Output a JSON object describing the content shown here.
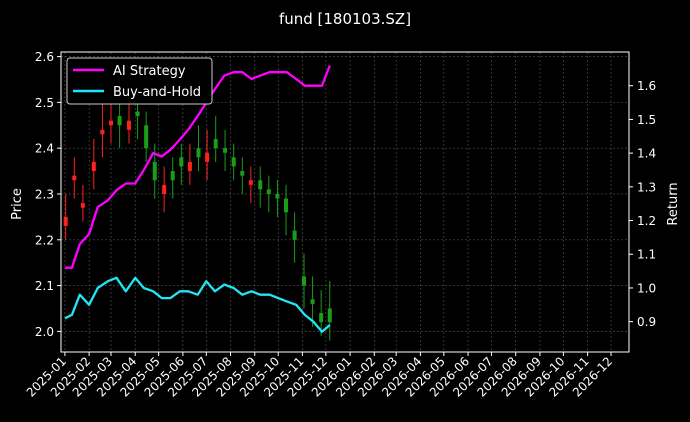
{
  "chart_data": {
    "type": "line",
    "title": "fund [180103.SZ]",
    "ylabel_left": "Price",
    "ylabel_right": "Return",
    "xlabel": "",
    "grid": true,
    "legend_position": "top-left",
    "background": "#000000",
    "x_ticks": [
      "2025-01",
      "2025-02",
      "2025-03",
      "2025-04",
      "2025-05",
      "2025-06",
      "2025-07",
      "2025-08",
      "2025-09",
      "2025-10",
      "2025-11",
      "2025-12",
      "2026-01",
      "2026-02",
      "2026-03",
      "2026-04",
      "2026-05",
      "2026-06",
      "2026-07",
      "2026-08",
      "2026-09",
      "2026-10",
      "2026-11",
      "2026-12"
    ],
    "y_left": {
      "range": [
        1.955,
        2.61
      ],
      "ticks": [
        "2.0",
        "2.1",
        "2.2",
        "2.3",
        "2.4",
        "2.5",
        "2.6"
      ]
    },
    "y_right": {
      "range": [
        0.81,
        1.7
      ],
      "ticks": [
        "0.9",
        "1.0",
        "1.1",
        "1.2",
        "1.3",
        "1.4",
        "1.5",
        "1.6"
      ]
    },
    "candles": {
      "up_color": "#ff2020",
      "down_color": "#1a9e1a",
      "x": [
        "2025-01-02",
        "2025-01-13",
        "2025-01-24",
        "2025-02-07",
        "2025-02-18",
        "2025-03-01",
        "2025-03-12",
        "2025-03-24",
        "2025-04-04",
        "2025-04-15",
        "2025-04-26",
        "2025-05-08",
        "2025-05-19",
        "2025-05-30",
        "2025-06-10",
        "2025-06-21",
        "2025-07-02",
        "2025-07-13",
        "2025-07-25",
        "2025-08-05",
        "2025-08-16",
        "2025-08-27",
        "2025-09-08",
        "2025-09-19",
        "2025-09-30",
        "2025-10-11",
        "2025-10-22",
        "2025-11-03",
        "2025-11-14",
        "2025-11-25",
        "2025-12-06"
      ],
      "open": [
        2.23,
        2.33,
        2.27,
        2.35,
        2.43,
        2.45,
        2.47,
        2.44,
        2.48,
        2.45,
        2.37,
        2.3,
        2.35,
        2.38,
        2.35,
        2.4,
        2.37,
        2.42,
        2.4,
        2.38,
        2.35,
        2.32,
        2.33,
        2.31,
        2.3,
        2.29,
        2.22,
        2.12,
        2.07,
        2.04,
        2.05
      ],
      "close": [
        2.25,
        2.34,
        2.28,
        2.37,
        2.44,
        2.46,
        2.45,
        2.46,
        2.47,
        2.4,
        2.33,
        2.32,
        2.33,
        2.36,
        2.37,
        2.38,
        2.39,
        2.4,
        2.39,
        2.36,
        2.34,
        2.33,
        2.31,
        2.3,
        2.29,
        2.26,
        2.2,
        2.1,
        2.06,
        2.02,
        2.02
      ],
      "high": [
        2.3,
        2.38,
        2.32,
        2.42,
        2.5,
        2.55,
        2.54,
        2.5,
        2.52,
        2.48,
        2.41,
        2.36,
        2.38,
        2.41,
        2.41,
        2.45,
        2.44,
        2.47,
        2.44,
        2.41,
        2.38,
        2.36,
        2.36,
        2.34,
        2.33,
        2.32,
        2.26,
        2.17,
        2.12,
        2.09,
        2.11
      ],
      "low": [
        2.2,
        2.29,
        2.24,
        2.31,
        2.38,
        2.41,
        2.4,
        2.41,
        2.42,
        2.37,
        2.29,
        2.26,
        2.29,
        2.32,
        2.32,
        2.35,
        2.33,
        2.37,
        2.35,
        2.33,
        2.3,
        2.28,
        2.27,
        2.26,
        2.25,
        2.21,
        2.15,
        2.05,
        2.01,
        1.99,
        1.98
      ]
    },
    "series": [
      {
        "name": "AI Strategy",
        "color": "#ff00ff",
        "axis": "right",
        "x": [
          "2025-01-01",
          "2025-01-10",
          "2025-01-20",
          "2025-02-01",
          "2025-02-12",
          "2025-02-25",
          "2025-03-08",
          "2025-03-20",
          "2025-04-01",
          "2025-04-12",
          "2025-04-24",
          "2025-05-05",
          "2025-05-16",
          "2025-05-28",
          "2025-06-08",
          "2025-06-20",
          "2025-07-01",
          "2025-07-12",
          "2025-07-24",
          "2025-08-05",
          "2025-08-16",
          "2025-08-28",
          "2025-09-08",
          "2025-09-20",
          "2025-10-01",
          "2025-10-12",
          "2025-10-24",
          "2025-11-04",
          "2025-11-15",
          "2025-11-26",
          "2025-12-06"
        ],
        "values": [
          1.06,
          1.06,
          1.13,
          1.16,
          1.24,
          1.26,
          1.29,
          1.31,
          1.31,
          1.35,
          1.4,
          1.39,
          1.41,
          1.44,
          1.47,
          1.51,
          1.55,
          1.59,
          1.63,
          1.64,
          1.64,
          1.62,
          1.63,
          1.64,
          1.64,
          1.64,
          1.62,
          1.6,
          1.6,
          1.6,
          1.66
        ]
      },
      {
        "name": "Buy-and-Hold",
        "color": "#22e5f5",
        "axis": "right",
        "x": [
          "2025-01-01",
          "2025-01-10",
          "2025-01-20",
          "2025-02-01",
          "2025-02-12",
          "2025-02-25",
          "2025-03-08",
          "2025-03-20",
          "2025-04-01",
          "2025-04-12",
          "2025-04-24",
          "2025-05-05",
          "2025-05-16",
          "2025-05-28",
          "2025-06-08",
          "2025-06-20",
          "2025-07-01",
          "2025-07-12",
          "2025-07-24",
          "2025-08-05",
          "2025-08-16",
          "2025-08-28",
          "2025-09-08",
          "2025-09-20",
          "2025-10-01",
          "2025-10-12",
          "2025-10-24",
          "2025-11-04",
          "2025-11-15",
          "2025-11-26",
          "2025-12-06"
        ],
        "values": [
          0.91,
          0.92,
          0.98,
          0.95,
          1.0,
          1.02,
          1.03,
          0.99,
          1.03,
          1.0,
          0.99,
          0.97,
          0.97,
          0.99,
          0.99,
          0.98,
          1.02,
          0.99,
          1.01,
          1.0,
          0.98,
          0.99,
          0.98,
          0.98,
          0.97,
          0.96,
          0.95,
          0.92,
          0.9,
          0.87,
          0.89
        ]
      }
    ]
  }
}
